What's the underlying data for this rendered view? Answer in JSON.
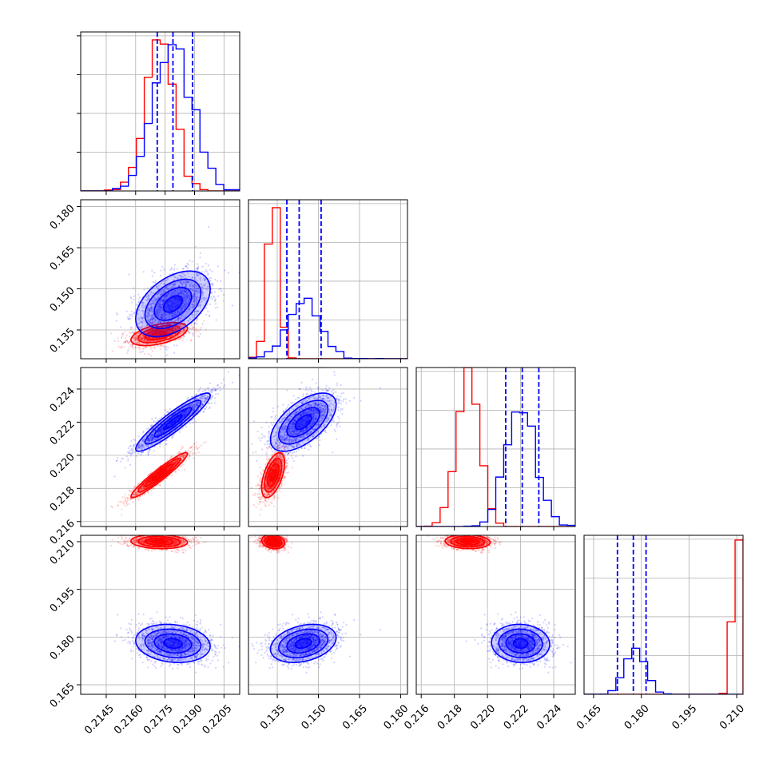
{
  "chart_data": {
    "type": "corner",
    "grid": true,
    "parameters": [
      {
        "range": [
          0.2132,
          0.2213
        ],
        "ticks": [
          "0.2145",
          "0.2160",
          "0.2175",
          "0.2190",
          "0.2205"
        ],
        "tick_values": [
          0.2145,
          0.216,
          0.2175,
          0.219,
          0.2205
        ]
      },
      {
        "range": [
          0.1245,
          0.1825
        ],
        "ticks": [
          "0.135",
          "0.150",
          "0.165",
          "0.180"
        ],
        "tick_values": [
          0.135,
          0.15,
          0.165,
          0.18
        ]
      },
      {
        "range": [
          0.2157,
          0.2253
        ],
        "ticks": [
          "0.216",
          "0.218",
          "0.220",
          "0.222",
          "0.224"
        ],
        "tick_values": [
          0.216,
          0.218,
          0.22,
          0.222,
          0.224
        ]
      },
      {
        "range": [
          0.162,
          0.212
        ],
        "ticks": [
          "0.165",
          "0.180",
          "0.195",
          "0.210"
        ],
        "tick_values": [
          0.165,
          0.18,
          0.195,
          0.21
        ]
      }
    ],
    "series": [
      {
        "color": "#ff0000",
        "means": [
          0.2172,
          0.1335,
          0.2188,
          0.21
        ],
        "sigmas": [
          0.00072,
          0.0021,
          0.00068,
          0.0011
        ],
        "correlations": [
          [
            0,
            1,
            0.5
          ],
          [
            0,
            2,
            0.95
          ],
          [
            0,
            3,
            -0.1
          ],
          [
            1,
            2,
            0.55
          ],
          [
            1,
            3,
            -0.2
          ],
          [
            2,
            3,
            -0.1
          ]
        ],
        "hist_scale": [
          0.95,
          0.95,
          1.0,
          0.97
        ]
      },
      {
        "color": "#0000ff",
        "means": [
          0.2179,
          0.1445,
          0.222,
          0.178
        ],
        "sigmas": [
          0.00095,
          0.006,
          0.00088,
          0.003
        ],
        "correlations": [
          [
            0,
            1,
            0.45
          ],
          [
            0,
            2,
            0.92
          ],
          [
            0,
            3,
            -0.15
          ],
          [
            1,
            2,
            0.6
          ],
          [
            1,
            3,
            0.3
          ],
          [
            2,
            3,
            -0.05
          ]
        ],
        "hist_scale": [
          0.92,
          0.38,
          0.72,
          0.29
        ],
        "quantiles": [
          [
            0.2171,
            0.2179,
            0.2189
          ],
          [
            0.1385,
            0.143,
            0.151
          ],
          [
            0.2211,
            0.2221,
            0.2231
          ],
          [
            0.1725,
            0.1775,
            0.1815
          ]
        ]
      }
    ]
  }
}
